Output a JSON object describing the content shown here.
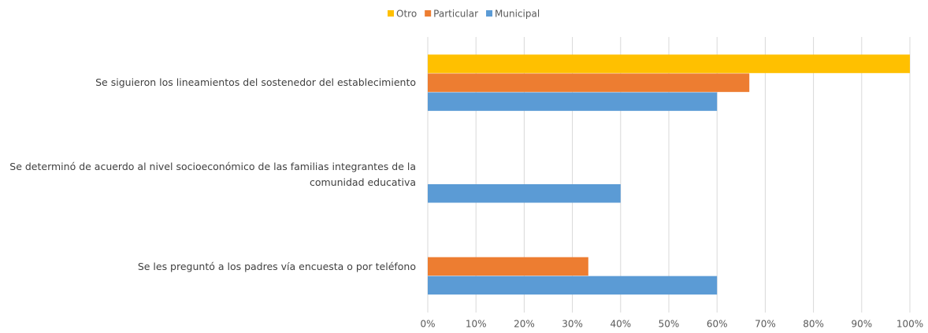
{
  "chart_data": {
    "type": "hbar",
    "categories": [
      "Se siguieron los lineamientos del sostenedor del establecimiento",
      "Se determinó de acuerdo al nivel socioeconómico de las familias integrantes de la comunidad educativa",
      "Se les preguntó a los padres vía encuesta o por teléfono"
    ],
    "series": [
      {
        "name": "Otro",
        "color": "#ffc000",
        "values": [
          100,
          0,
          0
        ]
      },
      {
        "name": "Particular",
        "color": "#ed7d31",
        "values": [
          66.7,
          0,
          33.3
        ]
      },
      {
        "name": "Municipal",
        "color": "#5b9bd5",
        "values": [
          60,
          40,
          60
        ]
      }
    ],
    "xlim": [
      0,
      100
    ],
    "xticks": [
      {
        "value": 0,
        "label": "0%"
      },
      {
        "value": 10,
        "label": "10%"
      },
      {
        "value": 20,
        "label": "20%"
      },
      {
        "value": 30,
        "label": "30%"
      },
      {
        "value": 40,
        "label": "40%"
      },
      {
        "value": 50,
        "label": "50%"
      },
      {
        "value": 60,
        "label": "60%"
      },
      {
        "value": 70,
        "label": "70%"
      },
      {
        "value": 80,
        "label": "80%"
      },
      {
        "value": 90,
        "label": "90%"
      },
      {
        "value": 100,
        "label": "100%"
      }
    ],
    "grid": true,
    "legend": "top"
  }
}
